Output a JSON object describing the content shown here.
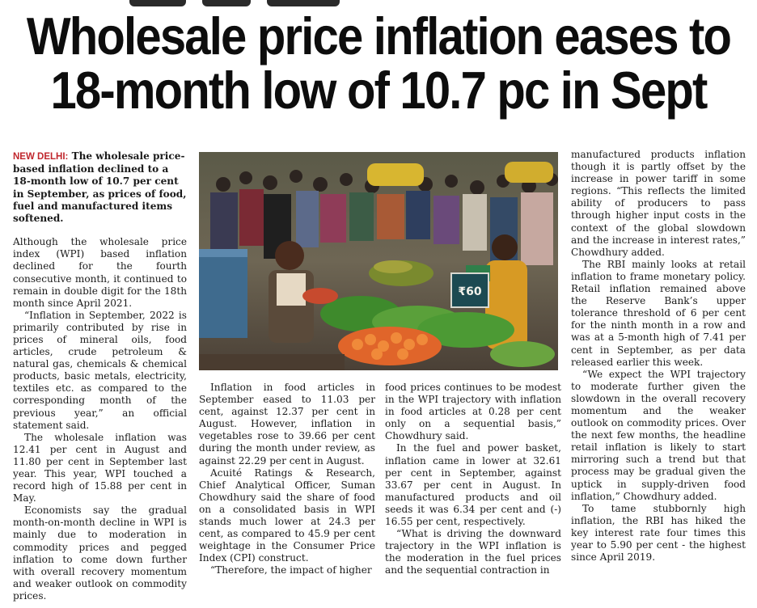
{
  "headline": {
    "line1": "Wholesale price inflation eases to",
    "line2": "18-month low of 10.7 pc in Sept"
  },
  "intro": {
    "dateline": "NEW DELHI:",
    "text": " The wholesale price-based inflation declined to a 18-month low of 10.7 per cent in September, as prices of food, fuel and manufactured items softened."
  },
  "col1": {
    "p1": "Although the wholesale price index (WPI) based inflation declined for the fourth consecutive month, it continued to remain in double digit for the 18th month since April 2021.",
    "p2": "“Inflation in September, 2022 is primarily contributed by rise in prices of mineral oils, food articles, crude petroleum & natural gas, chemicals & chemical products, basic metals, electricity, textiles etc. as compared to the corresponding month of the previous year,” an official statement said.",
    "p3": "The wholesale inflation was 12.41 per cent in August and 11.80 per cent in September last year. This year, WPI touched a record high of 15.88 per cent in May.",
    "p4": "Economists say the gradual month-on-month decline in WPI is mainly due to moderation in commodity prices and pegged inflation to come down further with overall recovery momentum and weaker outlook on commodity prices."
  },
  "col2": {
    "p1": "Inflation in food articles in September eased to 11.03 per cent, against 12.37 per cent in August. However, inflation in vegetables rose to 39.66 per cent during the month under review, as against 22.29 per cent in August.",
    "p2": "Acuité Ratings & Research, Chief Analytical Officer, Suman Chowdhury said the share of food on a consolidated basis in WPI stands much lower at 24.3 per cent, as compared to 45.9 per cent weightage in the Consumer Price Index (CPI) construct.",
    "p3": "“Therefore, the impact of higher"
  },
  "col3": {
    "p1": "food prices continues to be modest in the WPI trajectory with inflation in food articles at 0.28 per cent only on a sequential basis,” Chowdhury said.",
    "p2": "In the fuel and power basket, inflation came in lower at 32.61 per cent in September, against 33.67 per cent in August. In manufactured products and oil seeds it was 6.34 per cent and (-) 16.55 per cent, respectively.",
    "p3": "“What is driving the downward trajectory in the WPI inflation is the moderation in the fuel prices and the sequential contraction in"
  },
  "col4": {
    "p1": "manufactured products inflation though it is partly offset by the increase in power tariff in some regions. “This reflects the limited ability of producers to pass through higher input costs in the context of the global slowdown and the increase in interest rates,” Chowdhury added.",
    "p2": "The RBI mainly looks at retail inflation to frame monetary policy. Retail inflation remained above the Reserve Bank’s upper tolerance threshold of 6 per cent for the ninth month in a row and was at a 5-month high of 7.41 per cent in September, as per data released earlier this week.",
    "p3": "“We expect the WPI trajectory to moderate further given the slowdown in the overall recovery momentum and the weaker outlook on commodity prices. Over the next few months, the headline retail inflation is likely to start mirroring such a trend but that process may be gradual given the uptick in supply-driven food inflation,” Chowdhury added.",
    "p4": "To tame stubbornly high inflation, the RBI has hiked the key interest rate four times this year to 5.90 per cent - the highest since April 2019."
  },
  "photo": {
    "sign_text": "₹60",
    "subject": "crowded-vegetable-market-photo"
  }
}
